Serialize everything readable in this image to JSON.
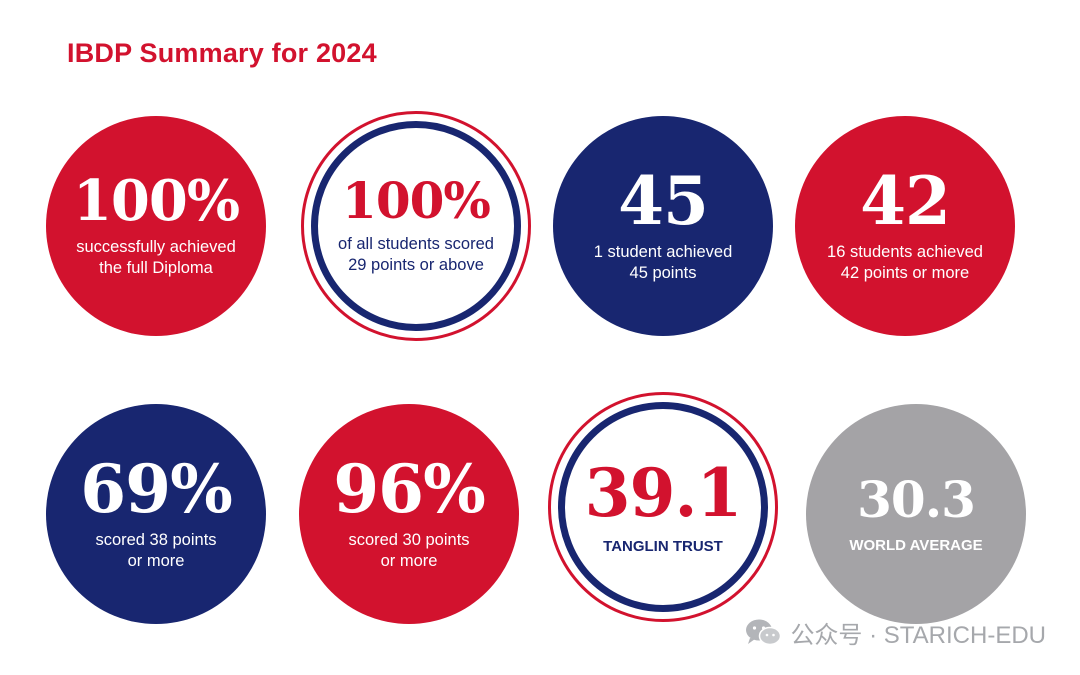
{
  "title": "IBDP Summary for 2024",
  "colors": {
    "red": "#d2122e",
    "navy": "#182670",
    "grey": "#a4a3a6",
    "white": "#ffffff"
  },
  "stats": [
    {
      "value": "100%",
      "description": "successfully achieved the full Diploma",
      "style": "red-filled"
    },
    {
      "value": "100%",
      "description": "of all students scored 29 points or above",
      "style": "white-ringed"
    },
    {
      "value": "45",
      "description": "1 student achieved 45 points",
      "style": "navy-filled"
    },
    {
      "value": "42",
      "description": "16 students achieved 42 points or more",
      "style": "red-filled"
    },
    {
      "value": "69%",
      "description": "scored 38 points or more",
      "style": "navy-filled"
    },
    {
      "value": "96%",
      "description": "scored 30 points or more",
      "style": "red-filled"
    },
    {
      "value": "39.1",
      "description": "TANGLIN TRUST",
      "style": "white-ringed"
    },
    {
      "value": "30.3",
      "description": "WORLD AVERAGE",
      "style": "grey-filled"
    }
  ],
  "watermark": {
    "icon": "wechat-icon",
    "text": "公众号 · STARICH-EDU"
  }
}
